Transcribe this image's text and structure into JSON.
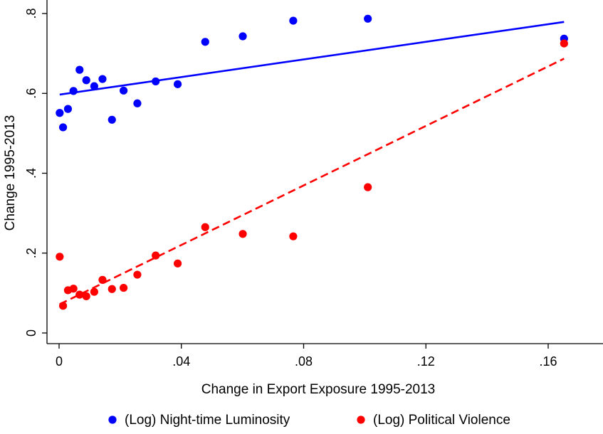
{
  "chart_data": {
    "type": "scatter",
    "xlabel": "Change in Export Exposure 1995-2013",
    "ylabel": "Change 1995-2013",
    "xlim": [
      -0.001,
      0.167
    ],
    "ylim": [
      -0.01,
      0.81
    ],
    "x_ticks": [
      0,
      0.04,
      0.08,
      0.12,
      0.16
    ],
    "x_tick_labels": [
      "0",
      ".04",
      ".08",
      ".12",
      ".16"
    ],
    "y_ticks": [
      0,
      0.2,
      0.4,
      0.6,
      0.8
    ],
    "y_tick_labels": [
      "0",
      ".2",
      ".4",
      ".6",
      ".8"
    ],
    "grid": false,
    "legend_position": "bottom",
    "series": [
      {
        "name": "(Log) Night-time Luminosity",
        "color": "#0000ff",
        "points": [
          [
            0.0002,
            0.551
          ],
          [
            0.0013,
            0.515
          ],
          [
            0.0029,
            0.561
          ],
          [
            0.0047,
            0.606
          ],
          [
            0.0067,
            0.659
          ],
          [
            0.0089,
            0.633
          ],
          [
            0.0115,
            0.618
          ],
          [
            0.0142,
            0.636
          ],
          [
            0.0173,
            0.534
          ],
          [
            0.0211,
            0.607
          ],
          [
            0.0256,
            0.575
          ],
          [
            0.0316,
            0.63
          ],
          [
            0.0388,
            0.623
          ],
          [
            0.0478,
            0.729
          ],
          [
            0.0601,
            0.743
          ],
          [
            0.0766,
            0.782
          ],
          [
            0.101,
            0.787
          ],
          [
            0.1652,
            0.737
          ]
        ],
        "fit": {
          "style": "solid",
          "x": [
            0.0002,
            0.1652
          ],
          "y": [
            0.597,
            0.779
          ]
        }
      },
      {
        "name": "(Log) Political Violence",
        "color": "#ff0000",
        "points": [
          [
            0.0002,
            0.191
          ],
          [
            0.0013,
            0.068
          ],
          [
            0.0029,
            0.107
          ],
          [
            0.0047,
            0.111
          ],
          [
            0.0067,
            0.096
          ],
          [
            0.0089,
            0.092
          ],
          [
            0.0115,
            0.103
          ],
          [
            0.0142,
            0.133
          ],
          [
            0.0173,
            0.11
          ],
          [
            0.0211,
            0.113
          ],
          [
            0.0256,
            0.146
          ],
          [
            0.0316,
            0.194
          ],
          [
            0.0388,
            0.174
          ],
          [
            0.0478,
            0.265
          ],
          [
            0.0601,
            0.248
          ],
          [
            0.0766,
            0.242
          ],
          [
            0.101,
            0.365
          ],
          [
            0.1652,
            0.725
          ]
        ],
        "fit": {
          "style": "dashed",
          "x": [
            0.0002,
            0.1652
          ],
          "y": [
            0.072,
            0.687
          ]
        }
      }
    ]
  }
}
